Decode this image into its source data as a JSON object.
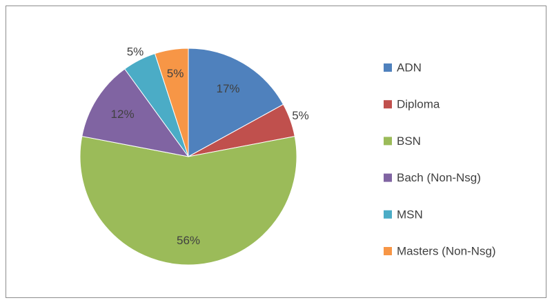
{
  "chart_data": {
    "type": "pie",
    "categories": [
      "ADN",
      "Diploma",
      "BSN",
      "Bach (Non-Nsg)",
      "MSN",
      "Masters (Non-Nsg)"
    ],
    "values": [
      17,
      5,
      56,
      12,
      5,
      5
    ],
    "value_labels": [
      "17%",
      "5%",
      "56%",
      "12%",
      "5%",
      "5%"
    ],
    "colors": [
      "#4f81bd",
      "#c0504d",
      "#9bbb59",
      "#8064a2",
      "#4bacc6",
      "#f79646"
    ],
    "legend": "right"
  }
}
